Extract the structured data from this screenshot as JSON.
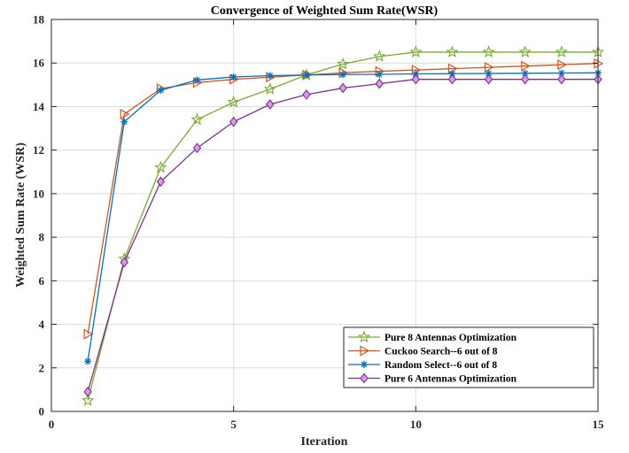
{
  "chart_data": {
    "type": "line",
    "title": "Convergence of Weighted Sum Rate(WSR)",
    "xlabel": "Iteration",
    "ylabel": "Weighted Sum Rate (WSR)",
    "xlim": [
      0,
      15
    ],
    "ylim": [
      0,
      18
    ],
    "xticks": [
      0,
      5,
      10,
      15
    ],
    "yticks": [
      0,
      2,
      4,
      6,
      8,
      10,
      12,
      14,
      16,
      18
    ],
    "grid": true,
    "legend_position": "bottom-right",
    "x": [
      1,
      2,
      3,
      4,
      5,
      6,
      7,
      8,
      9,
      10,
      11,
      12,
      13,
      14,
      15
    ],
    "series": [
      {
        "name": "Pure 8 Antennas Optimization",
        "color": "#77AC30",
        "marker": "star",
        "values": [
          0.5,
          7.0,
          11.2,
          13.4,
          14.2,
          14.8,
          15.45,
          15.95,
          16.3,
          16.5,
          16.5,
          16.5,
          16.5,
          16.5,
          16.5
        ]
      },
      {
        "name": "Cuckoo Search--6 out of 8",
        "color": "#D95319",
        "marker": "triangle-right",
        "values": [
          3.55,
          13.65,
          14.82,
          15.1,
          15.25,
          15.35,
          15.45,
          15.55,
          15.62,
          15.68,
          15.74,
          15.8,
          15.86,
          15.92,
          15.98
        ]
      },
      {
        "name": "Random Select--6 out of 8",
        "color": "#0072BD",
        "marker": "asterisk",
        "values": [
          2.3,
          13.3,
          14.75,
          15.22,
          15.36,
          15.42,
          15.45,
          15.47,
          15.48,
          15.5,
          15.51,
          15.52,
          15.53,
          15.54,
          15.55
        ]
      },
      {
        "name": "Pure 6 Antennas Optimization",
        "color": "#7E2F8E",
        "marker": "diamond",
        "values": [
          0.9,
          6.85,
          10.55,
          12.1,
          13.3,
          14.1,
          14.55,
          14.85,
          15.05,
          15.25,
          15.25,
          15.25,
          15.25,
          15.25,
          15.25
        ]
      }
    ]
  }
}
